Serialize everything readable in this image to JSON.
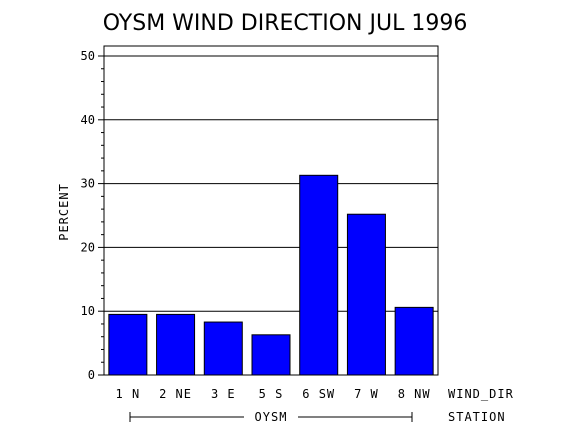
{
  "chart_data": {
    "type": "bar",
    "title": "OYSM WIND DIRECTION JUL 1996",
    "ylabel": "PERCENT",
    "xlabel": "WIND_DIR",
    "group_axis_label": "STATION",
    "group_label": "OYSM",
    "categories": [
      "1 N",
      "2 NE",
      "3 E",
      "5 S",
      "6 SW",
      "7 W",
      "8 NW"
    ],
    "values": [
      9.5,
      9.5,
      8.3,
      6.3,
      31.3,
      25.2,
      10.6
    ],
    "ylim": [
      0,
      50
    ],
    "yticks": [
      0,
      10,
      20,
      30,
      40,
      50
    ],
    "grid": true,
    "bar_color": "#0000ff"
  }
}
